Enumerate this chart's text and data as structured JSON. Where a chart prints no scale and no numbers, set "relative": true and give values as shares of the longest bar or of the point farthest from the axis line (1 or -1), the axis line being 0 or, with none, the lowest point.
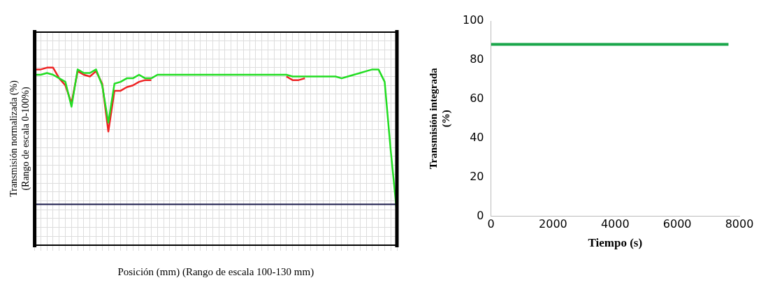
{
  "chart_data": [
    {
      "type": "line",
      "relative": true,
      "xlabel": "Posición (mm) (Rango de escala 100-130 mm)",
      "ylabel": "Transmisión normalizada (%) (Rango de escala 0-100%)",
      "grid": true,
      "legend": false,
      "categories": [
        null,
        null,
        null,
        null,
        null,
        null,
        null,
        null,
        null,
        null,
        null,
        null,
        null,
        null,
        null,
        null,
        null,
        null,
        null,
        null,
        null,
        null,
        null,
        null,
        null,
        null,
        null,
        null,
        null,
        null,
        null,
        null,
        null,
        null,
        null,
        null,
        null,
        null,
        null,
        null,
        null,
        null,
        null,
        null,
        null,
        null,
        null,
        null,
        null,
        null,
        null,
        null,
        null,
        null,
        null,
        null,
        null,
        null,
        null,
        null
      ],
      "series": [
        {
          "color": "#22dd22",
          "values": [
            0.96,
            0.96,
            0.97,
            0.96,
            0.94,
            0.92,
            0.78,
            0.99,
            0.97,
            0.97,
            0.99,
            0.9,
            0.69,
            0.91,
            0.92,
            0.94,
            0.94,
            0.96,
            0.94,
            0.94,
            0.96,
            0.96,
            0.96,
            0.96,
            0.96,
            0.96,
            0.96,
            0.96,
            0.96,
            0.96,
            0.96,
            0.96,
            0.96,
            0.96,
            0.96,
            0.96,
            0.96,
            0.96,
            0.96,
            0.96,
            0.96,
            0.96,
            0.95,
            0.95,
            0.95,
            0.95,
            0.95,
            0.95,
            0.95,
            0.95,
            0.94,
            0.95,
            0.96,
            0.97,
            0.98,
            0.99,
            0.99,
            0.92,
            0.53,
            0.18
          ]
        },
        {
          "color": "#ee2222",
          "values": [
            0.99,
            0.99,
            1.0,
            1.0,
            0.94,
            0.9,
            0.8,
            0.98,
            0.96,
            0.95,
            0.98,
            0.91,
            0.64,
            0.87,
            0.87,
            0.89,
            0.9,
            0.92,
            0.93,
            0.93,
            null,
            null,
            null,
            null,
            null,
            null,
            null,
            null,
            null,
            null,
            null,
            null,
            null,
            null,
            null,
            null,
            null,
            null,
            null,
            null,
            null,
            0.95,
            0.93,
            0.93,
            0.94,
            null,
            null,
            null,
            null,
            null,
            null,
            null,
            null,
            null,
            null,
            null,
            null,
            null,
            null,
            null
          ]
        }
      ],
      "ref_lines": [
        {
          "axis": "y",
          "value": 0.23,
          "color": "#1a1a4a"
        }
      ]
    },
    {
      "type": "line",
      "xlabel": "Tiempo (s)",
      "ylabel": "Transmisión integrada (%)",
      "legend": false,
      "x": [
        0,
        7650
      ],
      "series": [
        {
          "color": "#1aa64a",
          "values": [
            88,
            88
          ]
        }
      ],
      "xlim": [
        0,
        8000
      ],
      "xticks": [
        0,
        2000,
        4000,
        6000,
        8000
      ],
      "ylim": [
        0,
        100
      ],
      "yticks": [
        0,
        20,
        40,
        60,
        80,
        100
      ]
    }
  ]
}
